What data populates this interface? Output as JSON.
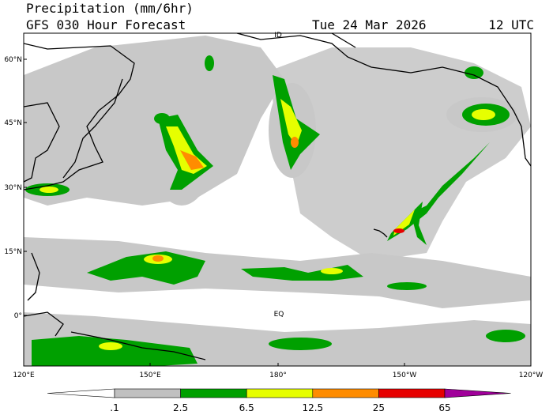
{
  "header": {
    "title": "Precipitation (mm/6hr)",
    "subtitle": "GFS 030 Hour Forecast",
    "date": "Tue 24 Mar 2026",
    "time": "12 UTC"
  },
  "map": {
    "lat_labels": [
      "60°N",
      "45°N",
      "30°N",
      "15°N",
      "0°"
    ],
    "lon_labels": [
      "120°E",
      "150°E",
      "180°",
      "150°W",
      "120°W"
    ],
    "annotations": [
      "ID",
      "EQ"
    ]
  },
  "colorbar": {
    "levels": [
      {
        "value": 0.1,
        "label": ".1"
      },
      2.5,
      6.5,
      12.5,
      25,
      65
    ],
    "below_color": "#ffffff",
    "colors": [
      "#c0c0c0",
      "#00a000",
      "#e6ff00",
      "#ff8c00",
      "#e60000",
      "#a0009a"
    ]
  }
}
